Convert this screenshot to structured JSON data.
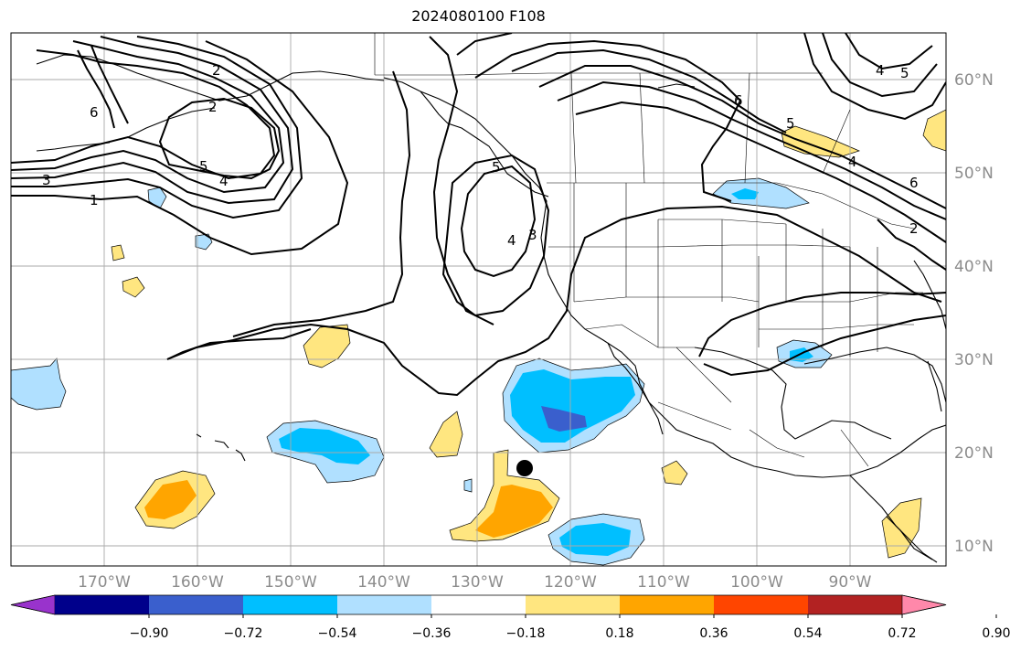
{
  "title": "2024080100 F108",
  "lat_labels": [
    "60°N",
    "50°N",
    "40°N",
    "30°N",
    "20°N",
    "10°N"
  ],
  "lon_labels": [
    "170°W",
    "160°W",
    "150°W",
    "140°W",
    "130°W",
    "120°W",
    "110°W",
    "100°W",
    "90°W"
  ],
  "colorbar": {
    "ticks": [
      "−0.90",
      "−0.72",
      "−0.54",
      "−0.36",
      "−0.18",
      "0.18",
      "0.36",
      "0.54",
      "0.72",
      "0.90"
    ],
    "colors": [
      "#9933cc",
      "#00008b",
      "#3a5fcd",
      "#00bfff",
      "#b0e0ff",
      "#ffffff",
      "#ffe680",
      "#ffa500",
      "#ff4500",
      "#b22222",
      "#ff88aa"
    ]
  },
  "contour_labels": [
    "2",
    "6",
    "3",
    "1",
    "5",
    "4",
    "2",
    "4",
    "5",
    "6",
    "4",
    "5",
    "6",
    "4",
    "3",
    "2",
    "5"
  ],
  "marker": "black-dot"
}
